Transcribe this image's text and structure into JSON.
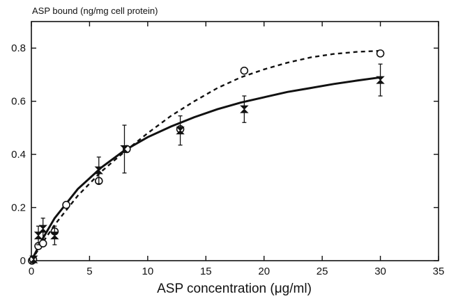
{
  "chart_data": {
    "type": "scatter",
    "ylabel": "ASP bound (ng/mg cell protein)",
    "xlabel": "ASP concentration (μg/ml)",
    "xlim": [
      0,
      35
    ],
    "ylim": [
      0,
      0.9
    ],
    "xticks": [
      0,
      5,
      10,
      15,
      20,
      25,
      30,
      35
    ],
    "yticks": [
      0,
      0.2,
      0.4,
      0.6,
      0.8
    ],
    "ytick_labels": [
      "0",
      "0.2",
      "0.4",
      "0.6",
      "0.8"
    ],
    "grid": false,
    "series": [
      {
        "marker": "open-circle",
        "points": [
          {
            "x": 0.05,
            "y": 0.0
          },
          {
            "x": 0.15,
            "y": 0.005
          },
          {
            "x": 0.6,
            "y": 0.055
          },
          {
            "x": 1.0,
            "y": 0.065
          },
          {
            "x": 2.0,
            "y": 0.11
          },
          {
            "x": 3.0,
            "y": 0.21
          },
          {
            "x": 5.8,
            "y": 0.3
          },
          {
            "x": 8.2,
            "y": 0.42
          },
          {
            "x": 12.8,
            "y": 0.495
          },
          {
            "x": 18.3,
            "y": 0.715
          },
          {
            "x": 30.0,
            "y": 0.78
          }
        ],
        "fit_line": "dashed",
        "fit_points": [
          [
            0,
            0
          ],
          [
            1,
            0.07
          ],
          [
            2,
            0.135
          ],
          [
            4,
            0.245
          ],
          [
            6,
            0.335
          ],
          [
            8,
            0.41
          ],
          [
            10,
            0.48
          ],
          [
            12,
            0.545
          ],
          [
            14,
            0.6
          ],
          [
            16,
            0.65
          ],
          [
            18,
            0.69
          ],
          [
            20,
            0.72
          ],
          [
            22,
            0.745
          ],
          [
            24,
            0.765
          ],
          [
            26,
            0.778
          ],
          [
            28,
            0.786
          ],
          [
            30,
            0.79
          ]
        ]
      },
      {
        "marker": "bowtie",
        "points": [
          {
            "x": 0.2,
            "y": 0.005,
            "err": 0.01
          },
          {
            "x": 0.6,
            "y": 0.095,
            "err": 0.035
          },
          {
            "x": 1.0,
            "y": 0.12,
            "err": 0.04
          },
          {
            "x": 2.0,
            "y": 0.095,
            "err": 0.035
          },
          {
            "x": 5.8,
            "y": 0.34,
            "err": 0.05
          },
          {
            "x": 8.0,
            "y": 0.42,
            "err": 0.09
          },
          {
            "x": 12.8,
            "y": 0.49,
            "err": 0.055
          },
          {
            "x": 18.3,
            "y": 0.57,
            "err": 0.05
          },
          {
            "x": 30.0,
            "y": 0.68,
            "err": 0.06
          }
        ],
        "fit_line": "solid",
        "fit_points": [
          [
            0,
            0
          ],
          [
            1,
            0.085
          ],
          [
            2,
            0.16
          ],
          [
            4,
            0.27
          ],
          [
            6,
            0.35
          ],
          [
            8,
            0.415
          ],
          [
            10,
            0.465
          ],
          [
            12,
            0.505
          ],
          [
            14,
            0.54
          ],
          [
            16,
            0.57
          ],
          [
            18,
            0.595
          ],
          [
            20,
            0.615
          ],
          [
            22,
            0.635
          ],
          [
            24,
            0.65
          ],
          [
            26,
            0.665
          ],
          [
            28,
            0.678
          ],
          [
            30,
            0.69
          ]
        ]
      }
    ]
  }
}
